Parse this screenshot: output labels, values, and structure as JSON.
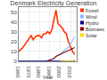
{
  "chart_data": {
    "type": "line",
    "title": "Denmark Electricity Generation",
    "xlabel": "Year",
    "series": [
      {
        "name": "Fossil",
        "color": "#ff3300",
        "x": [
          1960,
          1962,
          1964,
          1966,
          1968,
          1970,
          1972,
          1974,
          1976,
          1978,
          1980,
          1982,
          1984,
          1986,
          1988,
          1990,
          1992,
          1994,
          1996,
          1998,
          2000,
          2002,
          2004,
          2006,
          2008,
          2010,
          2012,
          2014
        ],
        "values": [
          10,
          12,
          14,
          17,
          20,
          24,
          26,
          22,
          25,
          26,
          26,
          24,
          28,
          28,
          30,
          28,
          32,
          42,
          52,
          38,
          36,
          34,
          30,
          28,
          20,
          15,
          10,
          7
        ]
      },
      {
        "name": "Wind",
        "color": "#88bbff",
        "x": [
          1985,
          1988,
          1990,
          1992,
          1994,
          1996,
          1998,
          2000,
          2002,
          2004,
          2006,
          2008,
          2010,
          2012,
          2014
        ],
        "values": [
          0.3,
          0.7,
          1.5,
          2,
          3,
          5,
          6,
          7,
          9,
          11,
          13,
          14,
          18,
          22,
          25
        ]
      },
      {
        "name": "Hydro",
        "color": "#000088",
        "x": [
          1960,
          1965,
          1970,
          1975,
          1980,
          1985,
          1990,
          1995,
          2000,
          2005,
          2010,
          2014
        ],
        "values": [
          0.1,
          0.1,
          0.1,
          0.1,
          0.1,
          0.1,
          0.1,
          0.1,
          0.1,
          0.1,
          0.1,
          0.1
        ]
      },
      {
        "name": "Biomass",
        "color": "#880000",
        "x": [
          1988,
          1990,
          1992,
          1994,
          1996,
          1998,
          2000,
          2002,
          2004,
          2006,
          2008,
          2010,
          2012,
          2014
        ],
        "values": [
          0.5,
          1,
          2,
          3,
          5,
          6,
          7,
          8,
          9,
          10,
          11,
          12,
          13,
          14
        ]
      },
      {
        "name": "Solar",
        "color": "#ffdd00",
        "x": [
          2000,
          2005,
          2010,
          2012,
          2014
        ],
        "values": [
          0.0,
          0.0,
          0.1,
          0.5,
          1.5
        ]
      }
    ],
    "xlim": [
      1960,
      2016
    ],
    "ylim": [
      0,
      55
    ],
    "xticks": [
      1960,
      1970,
      1980,
      1990,
      2000,
      2010
    ],
    "yticks": [
      0,
      10,
      20,
      30,
      40,
      50
    ],
    "grid": true,
    "legend": "right"
  }
}
